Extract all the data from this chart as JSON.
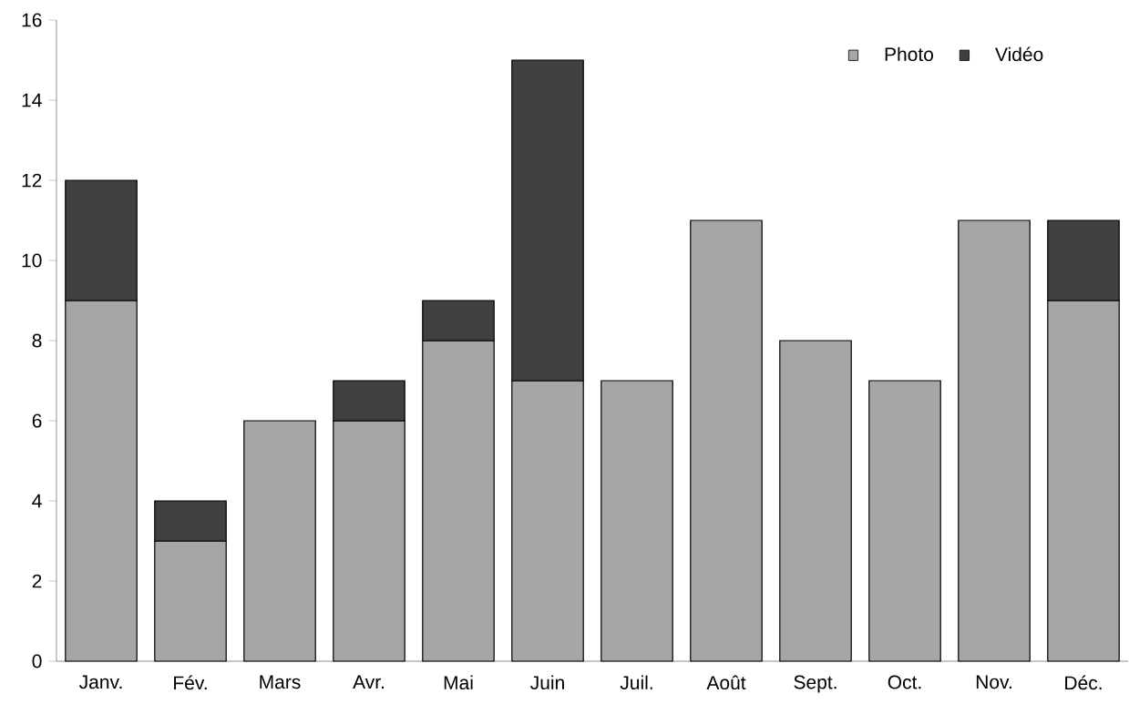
{
  "chart_data": {
    "type": "bar",
    "stacked": true,
    "categories": [
      "Janv.",
      "Fév.",
      "Mars",
      "Avr.",
      "Mai",
      "Juin",
      "Juil.",
      "Août",
      "Sept.",
      "Oct.",
      "Nov.",
      "Déc."
    ],
    "series": [
      {
        "name": "Photo",
        "color": "#a6a6a6",
        "values": [
          9,
          3,
          6,
          6,
          8,
          7,
          7,
          11,
          8,
          7,
          11,
          9
        ]
      },
      {
        "name": "Vidéo",
        "color": "#404040",
        "values": [
          3,
          1,
          null,
          1,
          1,
          8,
          null,
          null,
          null,
          null,
          null,
          2
        ]
      }
    ],
    "ylim": [
      0,
      16
    ],
    "yticks": [
      0,
      2,
      4,
      6,
      8,
      10,
      12,
      14,
      16
    ],
    "legend": "top right"
  }
}
